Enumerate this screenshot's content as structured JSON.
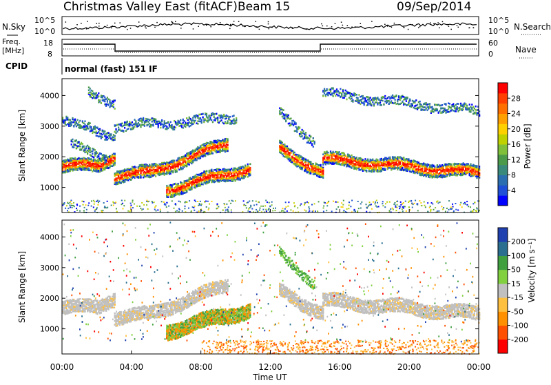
{
  "header": {
    "title": "Christmas Valley East (fitACF)",
    "beam": "Beam 15",
    "date": "09/Sep/2014"
  },
  "top_panels": {
    "nsky_label": "N.Sky",
    "nsearch_label": "N.Search",
    "nsky_ticks": [
      "10^5",
      "10^0"
    ],
    "nsky_right_ticks": [
      "10^5",
      "10^0"
    ],
    "freq_label_line1": "Freq.",
    "freq_label_line2": "[MHz]",
    "freq_ticks": [
      "18",
      "8"
    ],
    "nave_label": "Nave",
    "nave_ticks": [
      "60",
      "0"
    ],
    "cpid_label": "CPID",
    "cpid_text": "normal (fast) 151 IF"
  },
  "chart_data": [
    {
      "type": "heatmap",
      "panel": "power",
      "ylabel": "Slant Range [km]",
      "yticks": [
        1000,
        2000,
        3000,
        4000
      ],
      "ylim": [
        180,
        4550
      ],
      "xlim": [
        0,
        24
      ],
      "colorbar": {
        "label": "Power [dB]",
        "ticks": [
          "4",
          "8",
          "12",
          "16",
          "20",
          "24",
          "28"
        ],
        "colors": [
          "#0000ff",
          "#1f4fd6",
          "#2b6fb0",
          "#3a8a7c",
          "#4a9a4a",
          "#7fbf3a",
          "#bfd200",
          "#ffd000",
          "#ffa000",
          "#ff7000",
          "#ff4000",
          "#ff0000"
        ]
      },
      "bands": [
        {
          "t0": 0.0,
          "t1": 2.0,
          "r0": 1700,
          "r1": 1750
        },
        {
          "t0": 2.0,
          "t1": 3.0,
          "r0": 1750,
          "r1": 2050
        },
        {
          "t0": 3.0,
          "t1": 5.0,
          "r0": 1400,
          "r1": 1500
        },
        {
          "t0": 5.0,
          "t1": 9.5,
          "r0": 1500,
          "r1": 2450
        },
        {
          "t0": 6.0,
          "t1": 10.8,
          "r0": 950,
          "r1": 1650
        },
        {
          "t0": 12.5,
          "t1": 15.0,
          "r0": 2300,
          "r1": 1500
        },
        {
          "t0": 15.0,
          "t1": 24.0,
          "r0": 1950,
          "r1": 1500
        }
      ]
    },
    {
      "type": "heatmap",
      "panel": "velocity",
      "ylabel": "Slant Range [km]",
      "yticks": [
        1000,
        2000,
        3000,
        4000
      ],
      "ylim": [
        180,
        4550
      ],
      "xlim": [
        0,
        24
      ],
      "xticks": [
        "00:00",
        "04:00",
        "08:00",
        "12:00",
        "16:00",
        "20:00",
        "00:00"
      ],
      "xlabel": "Time UT",
      "colorbar": {
        "label": "Velocity [m s⁻¹]",
        "ticks": [
          "-200",
          "-100",
          "-50",
          "-15",
          "15",
          "50",
          "100",
          "200"
        ],
        "colors": [
          "#ff0000",
          "#ff5000",
          "#ff9000",
          "#ffc040",
          "#c0c0c0",
          "#80d040",
          "#40a040",
          "#2a6f8f",
          "#2040b0"
        ]
      }
    }
  ]
}
